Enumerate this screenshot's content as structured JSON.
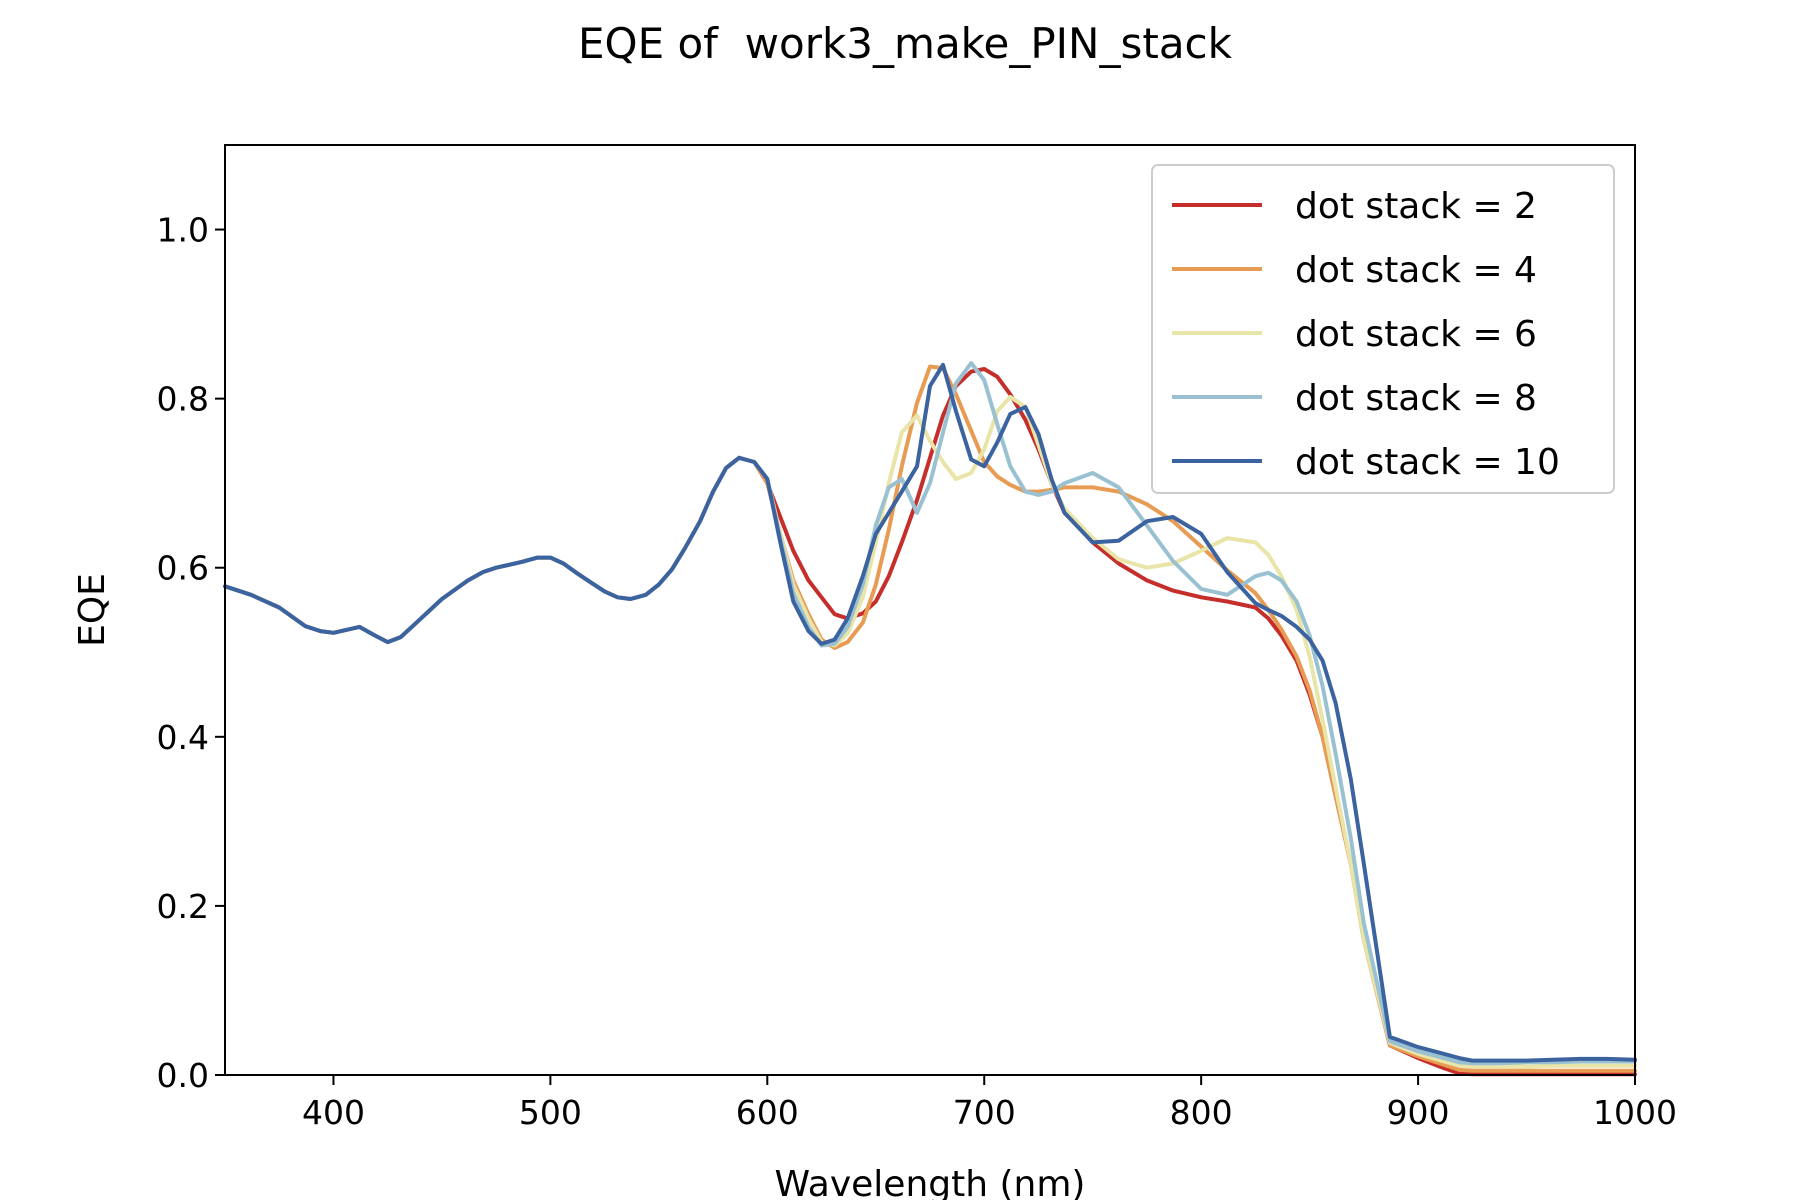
{
  "chart_data": {
    "type": "line",
    "title": "EQE of  work3_make_PIN_stack",
    "xlabel": "Wavelength (nm)",
    "ylabel": "EQE",
    "xlim": [
      350,
      1000
    ],
    "ylim": [
      0,
      1.1
    ],
    "xticks": [
      "400",
      "500",
      "600",
      "700",
      "800",
      "900",
      "1000"
    ],
    "yticks": [
      "0.0",
      "0.2",
      "0.4",
      "0.6",
      "0.8",
      "1.0"
    ],
    "grid": false,
    "legend_position": "top-right",
    "common_x": [
      350,
      362,
      375,
      387,
      394,
      400,
      412,
      419,
      425,
      431,
      437,
      450,
      462,
      469,
      475,
      487,
      494,
      500,
      506,
      512,
      519,
      525,
      531,
      537,
      544,
      550,
      556,
      562,
      569,
      575,
      581,
      587,
      594
    ],
    "common_y": [
      0.578,
      0.568,
      0.553,
      0.531,
      0.525,
      0.523,
      0.53,
      0.52,
      0.512,
      0.518,
      0.532,
      0.563,
      0.585,
      0.595,
      0.6,
      0.607,
      0.612,
      0.612,
      0.605,
      0.594,
      0.582,
      0.572,
      0.565,
      0.563,
      0.568,
      0.58,
      0.598,
      0.623,
      0.655,
      0.69,
      0.718,
      0.73,
      0.725
    ],
    "series": [
      {
        "name": "dot stack = 2",
        "color": "#c62e2b",
        "x": [
          600,
          606,
          612,
          619,
          625,
          631,
          637,
          644,
          650,
          656,
          662,
          669,
          675,
          681,
          687,
          694,
          700,
          706,
          712,
          719,
          725,
          731,
          737,
          750,
          762,
          775,
          787,
          800,
          812,
          825,
          831,
          837,
          844,
          850,
          856,
          862,
          869,
          875,
          887,
          900,
          912,
          919,
          925,
          937,
          950,
          962,
          975,
          987,
          1000
        ],
        "y": [
          0.7,
          0.66,
          0.62,
          0.585,
          0.565,
          0.545,
          0.54,
          0.546,
          0.56,
          0.59,
          0.63,
          0.68,
          0.73,
          0.78,
          0.815,
          0.832,
          0.835,
          0.826,
          0.805,
          0.775,
          0.74,
          0.7,
          0.665,
          0.63,
          0.605,
          0.585,
          0.573,
          0.565,
          0.56,
          0.553,
          0.54,
          0.52,
          0.49,
          0.45,
          0.4,
          0.33,
          0.25,
          0.16,
          0.035,
          0.02,
          0.008,
          0.002,
          0.001,
          0.001,
          0.001,
          0.001,
          0.001,
          0.001,
          0.001
        ]
      },
      {
        "name": "dot stack = 4",
        "color": "#e89b52",
        "x": [
          600,
          606,
          612,
          619,
          625,
          631,
          637,
          644,
          650,
          656,
          662,
          669,
          675,
          681,
          687,
          694,
          700,
          706,
          712,
          719,
          725,
          731,
          737,
          750,
          762,
          775,
          787,
          800,
          812,
          825,
          831,
          837,
          844,
          850,
          856,
          862,
          869,
          875,
          887,
          900,
          912,
          919,
          925,
          937,
          950,
          962,
          975,
          987,
          1000
        ],
        "y": [
          0.7,
          0.64,
          0.585,
          0.545,
          0.515,
          0.505,
          0.512,
          0.535,
          0.58,
          0.645,
          0.72,
          0.795,
          0.838,
          0.836,
          0.805,
          0.762,
          0.725,
          0.708,
          0.698,
          0.69,
          0.69,
          0.692,
          0.695,
          0.695,
          0.69,
          0.675,
          0.655,
          0.625,
          0.597,
          0.57,
          0.55,
          0.527,
          0.495,
          0.455,
          0.4,
          0.33,
          0.25,
          0.16,
          0.035,
          0.022,
          0.012,
          0.006,
          0.005,
          0.005,
          0.005,
          0.005,
          0.005,
          0.005,
          0.005
        ]
      },
      {
        "name": "dot stack = 6",
        "color": "#e9e4a8",
        "x": [
          600,
          606,
          612,
          619,
          625,
          631,
          637,
          644,
          650,
          656,
          662,
          669,
          675,
          681,
          687,
          694,
          700,
          706,
          712,
          719,
          725,
          731,
          737,
          750,
          762,
          775,
          787,
          800,
          812,
          825,
          831,
          837,
          844,
          850,
          856,
          862,
          869,
          875,
          887,
          900,
          912,
          919,
          925,
          937,
          950,
          962,
          975,
          987,
          1000
        ],
        "y": [
          0.705,
          0.64,
          0.58,
          0.54,
          0.512,
          0.508,
          0.522,
          0.565,
          0.63,
          0.7,
          0.76,
          0.78,
          0.75,
          0.725,
          0.705,
          0.712,
          0.74,
          0.785,
          0.802,
          0.79,
          0.745,
          0.7,
          0.67,
          0.635,
          0.61,
          0.6,
          0.605,
          0.62,
          0.635,
          0.63,
          0.615,
          0.59,
          0.55,
          0.495,
          0.42,
          0.34,
          0.25,
          0.16,
          0.038,
          0.025,
          0.016,
          0.011,
          0.01,
          0.01,
          0.01,
          0.011,
          0.011,
          0.011,
          0.011
        ]
      },
      {
        "name": "dot stack = 8",
        "color": "#99c1d2",
        "x": [
          600,
          606,
          612,
          619,
          625,
          631,
          637,
          644,
          650,
          656,
          662,
          669,
          675,
          681,
          687,
          694,
          700,
          706,
          712,
          719,
          725,
          731,
          737,
          750,
          762,
          775,
          787,
          800,
          812,
          825,
          831,
          837,
          844,
          850,
          856,
          862,
          869,
          875,
          887,
          900,
          912,
          919,
          925,
          937,
          950,
          962,
          975,
          987,
          1000
        ],
        "y": [
          0.705,
          0.635,
          0.57,
          0.53,
          0.508,
          0.51,
          0.53,
          0.58,
          0.65,
          0.695,
          0.705,
          0.665,
          0.7,
          0.76,
          0.818,
          0.842,
          0.822,
          0.77,
          0.72,
          0.69,
          0.686,
          0.69,
          0.7,
          0.712,
          0.695,
          0.65,
          0.608,
          0.575,
          0.568,
          0.59,
          0.594,
          0.585,
          0.56,
          0.52,
          0.46,
          0.38,
          0.28,
          0.18,
          0.04,
          0.028,
          0.02,
          0.015,
          0.014,
          0.014,
          0.015,
          0.015,
          0.016,
          0.016,
          0.016
        ]
      },
      {
        "name": "dot stack = 10",
        "color": "#3b63a0",
        "x": [
          600,
          606,
          612,
          619,
          625,
          631,
          637,
          644,
          650,
          656,
          662,
          669,
          675,
          681,
          687,
          694,
          700,
          706,
          712,
          719,
          725,
          731,
          737,
          750,
          762,
          775,
          787,
          800,
          812,
          825,
          831,
          837,
          844,
          850,
          856,
          862,
          869,
          875,
          887,
          900,
          912,
          919,
          925,
          937,
          950,
          962,
          975,
          987,
          1000
        ],
        "y": [
          0.705,
          0.63,
          0.56,
          0.525,
          0.51,
          0.515,
          0.54,
          0.59,
          0.64,
          0.665,
          0.69,
          0.72,
          0.815,
          0.84,
          0.785,
          0.728,
          0.72,
          0.748,
          0.782,
          0.79,
          0.758,
          0.705,
          0.665,
          0.63,
          0.632,
          0.655,
          0.66,
          0.64,
          0.595,
          0.558,
          0.55,
          0.543,
          0.53,
          0.515,
          0.49,
          0.44,
          0.35,
          0.25,
          0.045,
          0.033,
          0.025,
          0.02,
          0.017,
          0.017,
          0.017,
          0.018,
          0.019,
          0.019,
          0.018
        ]
      }
    ]
  }
}
